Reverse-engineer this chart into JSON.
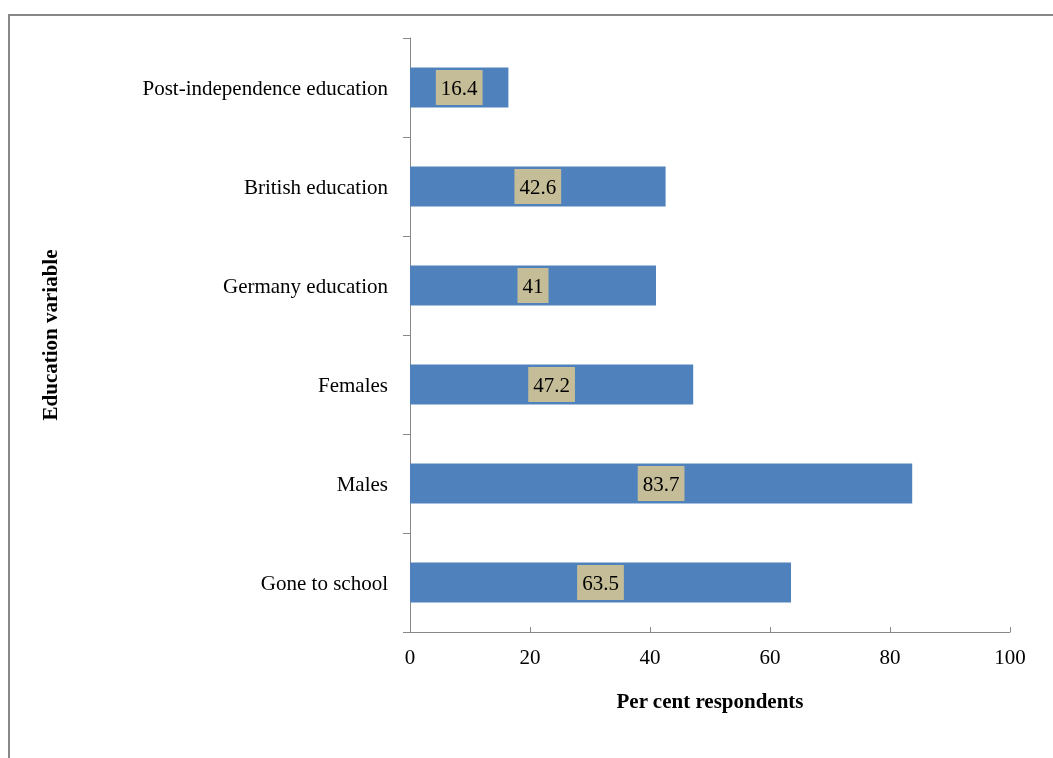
{
  "chart_data": {
    "type": "bar",
    "orientation": "horizontal",
    "xlabel": "Per cent respondents",
    "ylabel": "Education variable",
    "categories": [
      "Post-independence education",
      "British education",
      "Germany education",
      "Females",
      "Males",
      "Gone to school"
    ],
    "values": [
      16.4,
      42.6,
      41,
      47.2,
      83.7,
      63.5
    ],
    "color": "#4f81bd",
    "data_labels": true,
    "xlim": [
      0,
      100
    ],
    "xticks": [
      0,
      20,
      40,
      60,
      80,
      100
    ],
    "grid": false
  }
}
